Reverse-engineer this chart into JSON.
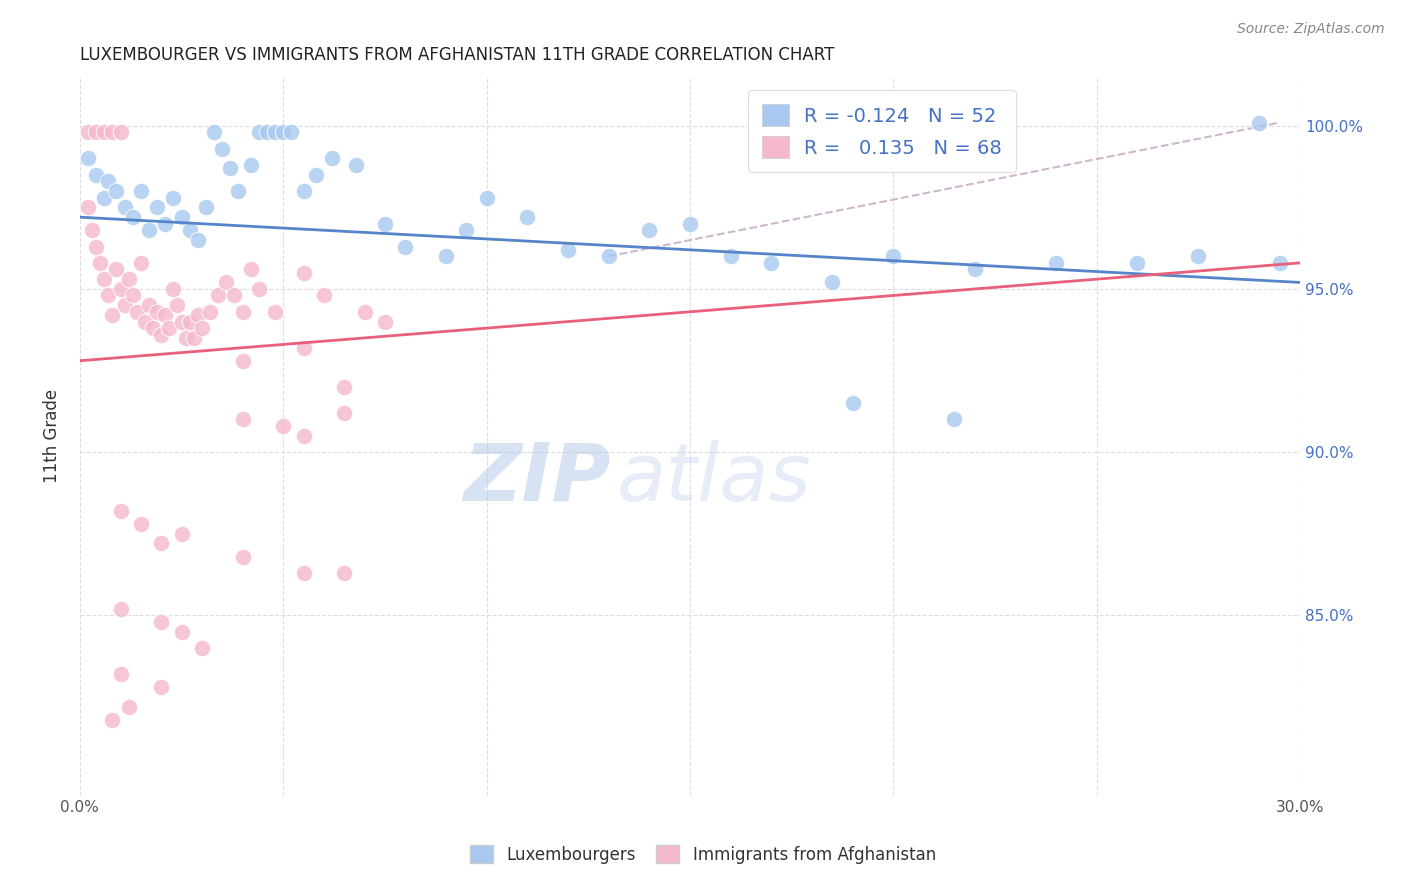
{
  "title": "LUXEMBOURGER VS IMMIGRANTS FROM AFGHANISTAN 11TH GRADE CORRELATION CHART",
  "source": "Source: ZipAtlas.com",
  "ylabel": "11th Grade",
  "ytick_labels": [
    "100.0%",
    "95.0%",
    "90.0%",
    "85.0%"
  ],
  "ytick_values": [
    1.0,
    0.95,
    0.9,
    0.85
  ],
  "xlim": [
    0.0,
    0.3
  ],
  "ylim": [
    0.795,
    1.015
  ],
  "legend_blue_R": "-0.124",
  "legend_blue_N": "52",
  "legend_pink_R": "0.135",
  "legend_pink_N": "68",
  "blue_scatter": [
    [
      0.002,
      0.99
    ],
    [
      0.004,
      0.985
    ],
    [
      0.006,
      0.978
    ],
    [
      0.007,
      0.983
    ],
    [
      0.009,
      0.98
    ],
    [
      0.011,
      0.975
    ],
    [
      0.013,
      0.972
    ],
    [
      0.015,
      0.98
    ],
    [
      0.017,
      0.968
    ],
    [
      0.019,
      0.975
    ],
    [
      0.021,
      0.97
    ],
    [
      0.023,
      0.978
    ],
    [
      0.025,
      0.972
    ],
    [
      0.027,
      0.968
    ],
    [
      0.029,
      0.965
    ],
    [
      0.031,
      0.975
    ],
    [
      0.033,
      0.998
    ],
    [
      0.035,
      0.993
    ],
    [
      0.037,
      0.987
    ],
    [
      0.039,
      0.98
    ],
    [
      0.042,
      0.988
    ],
    [
      0.044,
      0.998
    ],
    [
      0.046,
      0.998
    ],
    [
      0.048,
      0.998
    ],
    [
      0.05,
      0.998
    ],
    [
      0.052,
      0.998
    ],
    [
      0.055,
      0.98
    ],
    [
      0.058,
      0.985
    ],
    [
      0.062,
      0.99
    ],
    [
      0.068,
      0.988
    ],
    [
      0.075,
      0.97
    ],
    [
      0.08,
      0.963
    ],
    [
      0.09,
      0.96
    ],
    [
      0.095,
      0.968
    ],
    [
      0.1,
      0.978
    ],
    [
      0.11,
      0.972
    ],
    [
      0.12,
      0.962
    ],
    [
      0.13,
      0.96
    ],
    [
      0.14,
      0.968
    ],
    [
      0.15,
      0.97
    ],
    [
      0.16,
      0.96
    ],
    [
      0.17,
      0.958
    ],
    [
      0.185,
      0.952
    ],
    [
      0.2,
      0.96
    ],
    [
      0.22,
      0.956
    ],
    [
      0.24,
      0.958
    ],
    [
      0.19,
      0.915
    ],
    [
      0.215,
      0.91
    ],
    [
      0.26,
      0.958
    ],
    [
      0.275,
      0.96
    ],
    [
      0.29,
      1.001
    ],
    [
      0.295,
      0.958
    ]
  ],
  "pink_scatter": [
    [
      0.002,
      0.998
    ],
    [
      0.004,
      0.998
    ],
    [
      0.006,
      0.998
    ],
    [
      0.008,
      0.998
    ],
    [
      0.01,
      0.998
    ],
    [
      0.002,
      0.975
    ],
    [
      0.003,
      0.968
    ],
    [
      0.004,
      0.963
    ],
    [
      0.005,
      0.958
    ],
    [
      0.006,
      0.953
    ],
    [
      0.007,
      0.948
    ],
    [
      0.008,
      0.942
    ],
    [
      0.009,
      0.956
    ],
    [
      0.01,
      0.95
    ],
    [
      0.011,
      0.945
    ],
    [
      0.012,
      0.953
    ],
    [
      0.013,
      0.948
    ],
    [
      0.014,
      0.943
    ],
    [
      0.015,
      0.958
    ],
    [
      0.016,
      0.94
    ],
    [
      0.017,
      0.945
    ],
    [
      0.018,
      0.938
    ],
    [
      0.019,
      0.943
    ],
    [
      0.02,
      0.936
    ],
    [
      0.021,
      0.942
    ],
    [
      0.022,
      0.938
    ],
    [
      0.023,
      0.95
    ],
    [
      0.024,
      0.945
    ],
    [
      0.025,
      0.94
    ],
    [
      0.026,
      0.935
    ],
    [
      0.027,
      0.94
    ],
    [
      0.028,
      0.935
    ],
    [
      0.029,
      0.942
    ],
    [
      0.03,
      0.938
    ],
    [
      0.032,
      0.943
    ],
    [
      0.034,
      0.948
    ],
    [
      0.036,
      0.952
    ],
    [
      0.038,
      0.948
    ],
    [
      0.04,
      0.943
    ],
    [
      0.042,
      0.956
    ],
    [
      0.044,
      0.95
    ],
    [
      0.048,
      0.943
    ],
    [
      0.055,
      0.955
    ],
    [
      0.06,
      0.948
    ],
    [
      0.07,
      0.943
    ],
    [
      0.075,
      0.94
    ],
    [
      0.04,
      0.928
    ],
    [
      0.055,
      0.932
    ],
    [
      0.065,
      0.92
    ],
    [
      0.04,
      0.91
    ],
    [
      0.05,
      0.908
    ],
    [
      0.055,
      0.905
    ],
    [
      0.065,
      0.912
    ],
    [
      0.01,
      0.882
    ],
    [
      0.015,
      0.878
    ],
    [
      0.02,
      0.872
    ],
    [
      0.025,
      0.875
    ],
    [
      0.04,
      0.868
    ],
    [
      0.055,
      0.863
    ],
    [
      0.065,
      0.863
    ],
    [
      0.01,
      0.852
    ],
    [
      0.02,
      0.848
    ],
    [
      0.025,
      0.845
    ],
    [
      0.03,
      0.84
    ],
    [
      0.01,
      0.832
    ],
    [
      0.02,
      0.828
    ],
    [
      0.008,
      0.818
    ],
    [
      0.012,
      0.822
    ]
  ],
  "blue_line_x": [
    0.0,
    0.3
  ],
  "blue_line_y": [
    0.972,
    0.952
  ],
  "pink_line_x": [
    0.0,
    0.3
  ],
  "pink_line_y": [
    0.928,
    0.958
  ],
  "dashed_line_x": [
    0.13,
    0.295
  ],
  "dashed_line_y": [
    0.96,
    1.001
  ],
  "blue_color": "#a8c8f0",
  "blue_line_color": "#5585c8",
  "pink_color": "#f5b8cc",
  "pink_line_color": "#e8607a",
  "dashed_color": "#c8b0c8",
  "watermark_zip": "ZIP",
  "watermark_atlas": "atlas",
  "background_color": "#ffffff",
  "grid_color": "#dddddd"
}
